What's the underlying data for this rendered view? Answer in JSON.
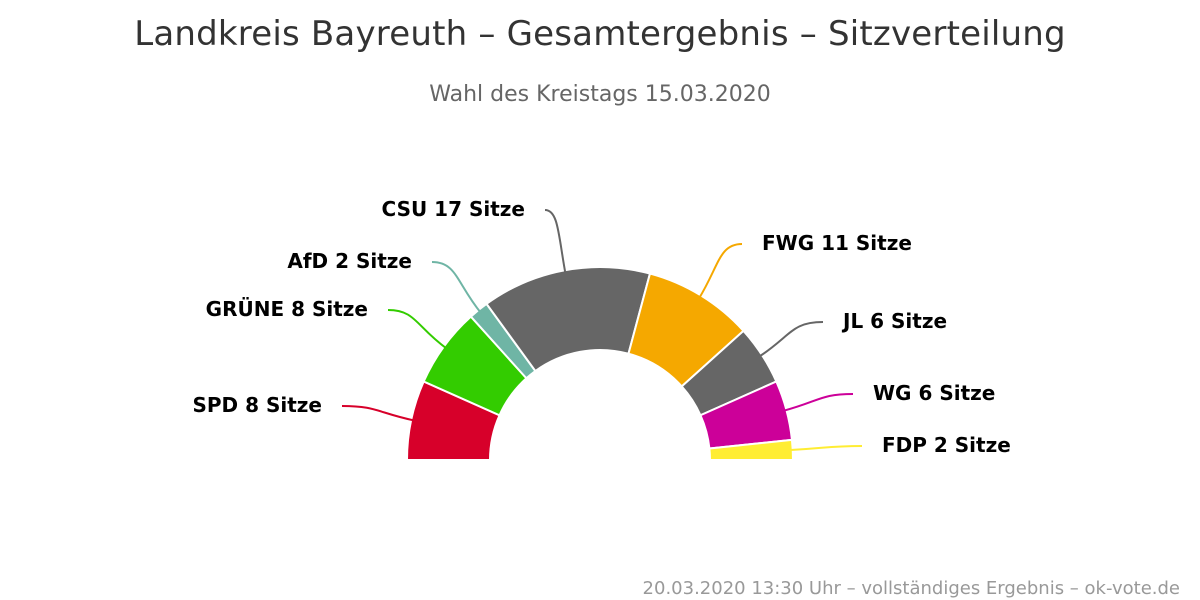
{
  "chart_data": {
    "type": "pie",
    "variant": "semicircle-donut",
    "title": "Landkreis Bayreuth – Gesamtergebnis – Sitzverteilung",
    "subtitle": "Wahl des Kreistags 15.03.2020",
    "unit": "Sitze",
    "slices": [
      {
        "name": "SPD",
        "value": 8,
        "color": "#d7002a",
        "label": "SPD 8 Sitze"
      },
      {
        "name": "GRÜNE",
        "value": 8,
        "color": "#33cc00",
        "label": "GRÜNE 8 Sitze"
      },
      {
        "name": "AfD",
        "value": 2,
        "color": "#6fb5a5",
        "label": "AfD 2 Sitze"
      },
      {
        "name": "CSU",
        "value": 17,
        "color": "#666666",
        "label": "CSU 17 Sitze"
      },
      {
        "name": "FWG",
        "value": 11,
        "color": "#f5a800",
        "label": "FWG 11 Sitze"
      },
      {
        "name": "JL",
        "value": 6,
        "color": "#666666",
        "label": "JL 6 Sitze"
      },
      {
        "name": "WG",
        "value": 6,
        "color": "#cc0099",
        "label": "WG 6 Sitze"
      },
      {
        "name": "FDP",
        "value": 2,
        "color": "#ffed33",
        "label": "FDP 2 Sitze"
      }
    ]
  },
  "credits": "20.03.2020 13:30 Uhr – vollständiges Ergebnis – ok-vote.de"
}
